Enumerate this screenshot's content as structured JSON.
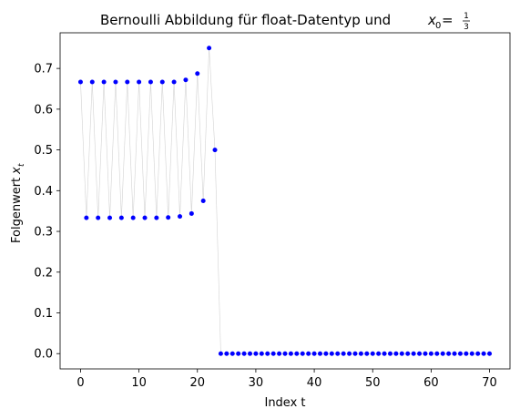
{
  "chart_data": {
    "type": "scatter",
    "title_prefix": "Bernoulli Abbildung für float-Datentyp und ",
    "title_math_var": "x",
    "title_math_sub": "0",
    "title_math_eq": " = ",
    "title_math_num": "1",
    "title_math_den": "3",
    "xlabel": "Index t",
    "ylabel_prefix": "Folgenwert ",
    "ylabel_var": "x",
    "ylabel_sub": "t",
    "xlim": [
      -3.5,
      73.5
    ],
    "ylim": [
      -0.0375,
      0.7875
    ],
    "xticks": [
      0,
      10,
      20,
      30,
      40,
      50,
      60,
      70
    ],
    "yticks": [
      0.0,
      0.1,
      0.2,
      0.3,
      0.4,
      0.5,
      0.6,
      0.7
    ],
    "ytick_labels": [
      "0.0",
      "0.1",
      "0.2",
      "0.3",
      "0.4",
      "0.5",
      "0.6",
      "0.7"
    ],
    "grid": false,
    "legend": "none",
    "marker_color": "#0000ff",
    "line_color": "#d3d3d3",
    "x": [
      0,
      1,
      2,
      3,
      4,
      5,
      6,
      7,
      8,
      9,
      10,
      11,
      12,
      13,
      14,
      15,
      16,
      17,
      18,
      19,
      20,
      21,
      22,
      23,
      24,
      25,
      26,
      27,
      28,
      29,
      30,
      31,
      32,
      33,
      34,
      35,
      36,
      37,
      38,
      39,
      40,
      41,
      42,
      43,
      44,
      45,
      46,
      47,
      48,
      49,
      50,
      51,
      52,
      53,
      54,
      55,
      56,
      57,
      58,
      59,
      60,
      61,
      62,
      63,
      64,
      65,
      66,
      67,
      68,
      69,
      70
    ],
    "y": [
      0.6667,
      0.3333,
      0.6667,
      0.3333,
      0.6667,
      0.3333,
      0.6667,
      0.3333,
      0.6667,
      0.3333,
      0.6667,
      0.3333,
      0.6667,
      0.3333,
      0.6667,
      0.3342,
      0.6667,
      0.3367,
      0.6719,
      0.3438,
      0.6875,
      0.375,
      0.75,
      0.5,
      0,
      0,
      0,
      0,
      0,
      0,
      0,
      0,
      0,
      0,
      0,
      0,
      0,
      0,
      0,
      0,
      0,
      0,
      0,
      0,
      0,
      0,
      0,
      0,
      0,
      0,
      0,
      0,
      0,
      0,
      0,
      0,
      0,
      0,
      0,
      0,
      0,
      0,
      0,
      0,
      0,
      0,
      0,
      0,
      0,
      0,
      0
    ]
  }
}
